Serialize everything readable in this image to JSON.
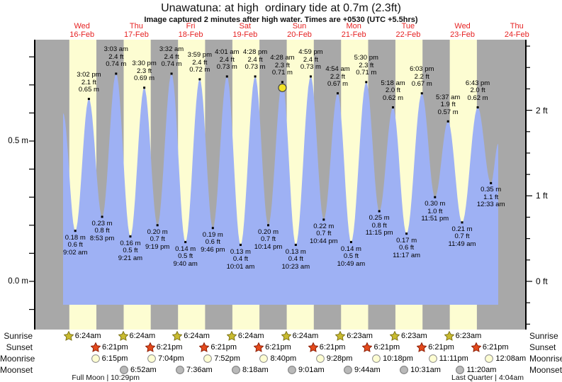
{
  "page": {
    "title": "Unawatuna: at high  ordinary tide at 0.7m (2.3ft)",
    "subtitle": "Image captured 2 minutes after high water. Times are +0530 (UTC +5.5hrs)"
  },
  "days": [
    {
      "name": "Wed",
      "date": "16-Feb"
    },
    {
      "name": "Thu",
      "date": "17-Feb"
    },
    {
      "name": "Fri",
      "date": "18-Feb"
    },
    {
      "name": "Sat",
      "date": "19-Feb"
    },
    {
      "name": "Sun",
      "date": "20-Feb"
    },
    {
      "name": "Mon",
      "date": "21-Feb"
    },
    {
      "name": "Tue",
      "date": "22-Feb"
    },
    {
      "name": "Wed",
      "date": "23-Feb"
    },
    {
      "name": "Thu",
      "date": "24-Feb"
    }
  ],
  "axes": {
    "left": {
      "unit": "m",
      "tick_step": 0.1,
      "labels": [
        {
          "text": "0.5 m",
          "value": 0.5
        },
        {
          "text": "0.0 m",
          "value": 0.0
        }
      ]
    },
    "right": {
      "unit": "ft",
      "tick_step": 0.25,
      "labels": [
        {
          "text": "2 ft",
          "value": 2
        },
        {
          "text": "1 ft",
          "value": 1
        },
        {
          "text": "0 ft",
          "value": 0
        }
      ]
    }
  },
  "chart_data": {
    "type": "area",
    "series_name": "tide height",
    "units": {
      "primary": "m",
      "secondary": "ft"
    },
    "ylim_m": [
      -0.17,
      0.86
    ],
    "baseline_m": -0.085,
    "grid": "day-night vertical bands",
    "extremes": [
      {
        "day": 0,
        "kind": "low",
        "time": "9:02 am",
        "m": "0.18 m",
        "ft": "0.6 ft"
      },
      {
        "day": 0,
        "kind": "high",
        "time": "3:02 pm",
        "m": "0.65 m",
        "ft": "2.1 ft"
      },
      {
        "day": 0,
        "kind": "low",
        "time": "8:53 pm",
        "m": "0.23 m",
        "ft": "0.8 ft"
      },
      {
        "day": 1,
        "kind": "high",
        "time": "3:03 am",
        "m": "0.74 m",
        "ft": "2.4 ft"
      },
      {
        "day": 1,
        "kind": "low",
        "time": "9:21 am",
        "m": "0.16 m",
        "ft": "0.5 ft"
      },
      {
        "day": 1,
        "kind": "high",
        "time": "3:30 pm",
        "m": "0.69 m",
        "ft": "2.3 ft"
      },
      {
        "day": 1,
        "kind": "low",
        "time": "9:19 pm",
        "m": "0.20 m",
        "ft": "0.7 ft"
      },
      {
        "day": 2,
        "kind": "high",
        "time": "3:32 am",
        "m": "0.74 m",
        "ft": "2.4 ft"
      },
      {
        "day": 2,
        "kind": "low",
        "time": "9:40 am",
        "m": "0.14 m",
        "ft": "0.5 ft"
      },
      {
        "day": 2,
        "kind": "high",
        "time": "3:59 pm",
        "m": "0.72 m",
        "ft": "2.4 ft"
      },
      {
        "day": 2,
        "kind": "low",
        "time": "9:46 pm",
        "m": "0.19 m",
        "ft": "0.6 ft"
      },
      {
        "day": 3,
        "kind": "high",
        "time": "4:01 am",
        "m": "0.73 m",
        "ft": "2.4 ft"
      },
      {
        "day": 3,
        "kind": "low",
        "time": "10:01 am",
        "m": "0.13 m",
        "ft": "0.4 ft"
      },
      {
        "day": 3,
        "kind": "high",
        "time": "4:28 pm",
        "m": "0.73 m",
        "ft": "2.4 ft"
      },
      {
        "day": 3,
        "kind": "low",
        "time": "10:14 pm",
        "m": "0.20 m",
        "ft": "0.7 ft"
      },
      {
        "day": 4,
        "kind": "high",
        "time": "4:28 am",
        "m": "0.71 m",
        "ft": "2.3 ft",
        "current": true
      },
      {
        "day": 4,
        "kind": "low",
        "time": "10:23 am",
        "m": "0.13 m",
        "ft": "0.4 ft"
      },
      {
        "day": 4,
        "kind": "high",
        "time": "4:59 pm",
        "m": "0.73 m",
        "ft": "2.4 ft"
      },
      {
        "day": 4,
        "kind": "low",
        "time": "10:44 pm",
        "m": "0.22 m",
        "ft": "0.7 ft"
      },
      {
        "day": 5,
        "kind": "high",
        "time": "4:54 am",
        "m": "0.67 m",
        "ft": "2.2 ft"
      },
      {
        "day": 5,
        "kind": "low",
        "time": "10:49 am",
        "m": "0.14 m",
        "ft": "0.5 ft"
      },
      {
        "day": 5,
        "kind": "high",
        "time": "5:30 pm",
        "m": "0.71 m",
        "ft": "2.3 ft"
      },
      {
        "day": 5,
        "kind": "low",
        "time": "11:15 pm",
        "m": "0.25 m",
        "ft": "0.8 ft"
      },
      {
        "day": 6,
        "kind": "high",
        "time": "5:18 am",
        "m": "0.62 m",
        "ft": "2.0 ft"
      },
      {
        "day": 6,
        "kind": "low",
        "time": "11:17 am",
        "m": "0.17 m",
        "ft": "0.6 ft"
      },
      {
        "day": 6,
        "kind": "high",
        "time": "6:03 pm",
        "m": "0.67 m",
        "ft": "2.2 ft"
      },
      {
        "day": 6,
        "kind": "low",
        "time": "11:51 pm",
        "m": "0.30 m",
        "ft": "1.0 ft"
      },
      {
        "day": 7,
        "kind": "high",
        "time": "5:37 am",
        "m": "0.57 m",
        "ft": "1.9 ft"
      },
      {
        "day": 7,
        "kind": "low",
        "time": "11:49 am",
        "m": "0.21 m",
        "ft": "0.7 ft"
      },
      {
        "day": 7,
        "kind": "high",
        "time": "6:43 pm",
        "m": "0.62 m",
        "ft": "2.0 ft"
      },
      {
        "day": 8,
        "kind": "low",
        "time": "12:33 am",
        "m": "0.35 m",
        "ft": "1.1 ft"
      }
    ],
    "current_marker": {
      "day": 4,
      "time": "4:28 am",
      "note": "yellow dot = time image captured"
    }
  },
  "almanac": {
    "rows": [
      {
        "label": "Sunrise",
        "icon": "sunrise-star-icon",
        "entries": [
          {
            "day": 0,
            "time": "6:24am"
          },
          {
            "day": 1,
            "time": "6:24am"
          },
          {
            "day": 2,
            "time": "6:24am"
          },
          {
            "day": 3,
            "time": "6:24am"
          },
          {
            "day": 4,
            "time": "6:24am"
          },
          {
            "day": 5,
            "time": "6:23am"
          },
          {
            "day": 6,
            "time": "6:23am"
          },
          {
            "day": 7,
            "time": "6:23am"
          }
        ]
      },
      {
        "label": "Sunset",
        "icon": "sunset-star-icon",
        "entries": [
          {
            "day": 0,
            "time": "6:21pm"
          },
          {
            "day": 1,
            "time": "6:21pm"
          },
          {
            "day": 2,
            "time": "6:21pm"
          },
          {
            "day": 3,
            "time": "6:21pm"
          },
          {
            "day": 4,
            "time": "6:21pm"
          },
          {
            "day": 5,
            "time": "6:21pm"
          },
          {
            "day": 6,
            "time": "6:21pm"
          },
          {
            "day": 7,
            "time": "6:21pm"
          }
        ]
      },
      {
        "label": "Moonrise",
        "icon": "moonrise-icon",
        "entries": [
          {
            "day": 0,
            "time": "6:15pm"
          },
          {
            "day": 1,
            "time": "7:04pm"
          },
          {
            "day": 2,
            "time": "7:52pm"
          },
          {
            "day": 3,
            "time": "8:40pm"
          },
          {
            "day": 4,
            "time": "9:28pm"
          },
          {
            "day": 5,
            "time": "10:18pm"
          },
          {
            "day": 6,
            "time": "11:11pm"
          },
          {
            "day": 8,
            "time": "12:08am"
          }
        ]
      },
      {
        "label": "Moonset",
        "icon": "moonset-icon",
        "entries": [
          {
            "day": 1,
            "time": "6:52am"
          },
          {
            "day": 2,
            "time": "7:36am"
          },
          {
            "day": 3,
            "time": "8:18am"
          },
          {
            "day": 4,
            "time": "9:01am"
          },
          {
            "day": 5,
            "time": "9:44am"
          },
          {
            "day": 6,
            "time": "10:31am"
          },
          {
            "day": 7,
            "time": "11:20am"
          }
        ]
      }
    ],
    "notes": [
      {
        "text": "Full Moon | 10:29pm",
        "day": 0,
        "time": "10:29pm"
      },
      {
        "text": "Last Quarter | 4:04am",
        "day": 8,
        "time": "4:04am"
      }
    ]
  },
  "colors": {
    "background": "#ffffff",
    "night_band": "#a8a8a8",
    "day_band": "#fdfdd2",
    "tide_fill": "#9eb1f4",
    "date_text": "#e62222",
    "axis_line": "#000000",
    "sunrise_star_fill": "#c9bb2f",
    "sunrise_star_stroke": "#7e751a",
    "sunset_star_fill": "#e44a1c",
    "sunset_star_stroke": "#8e2008",
    "moonrise_fill": "#fdfdd2",
    "moonrise_stroke": "#8a8a8a",
    "moonset_fill": "#b9b9b9",
    "moonset_stroke": "#787878",
    "current_marker_fill": "#f2e226",
    "current_marker_stroke": "#444444"
  }
}
